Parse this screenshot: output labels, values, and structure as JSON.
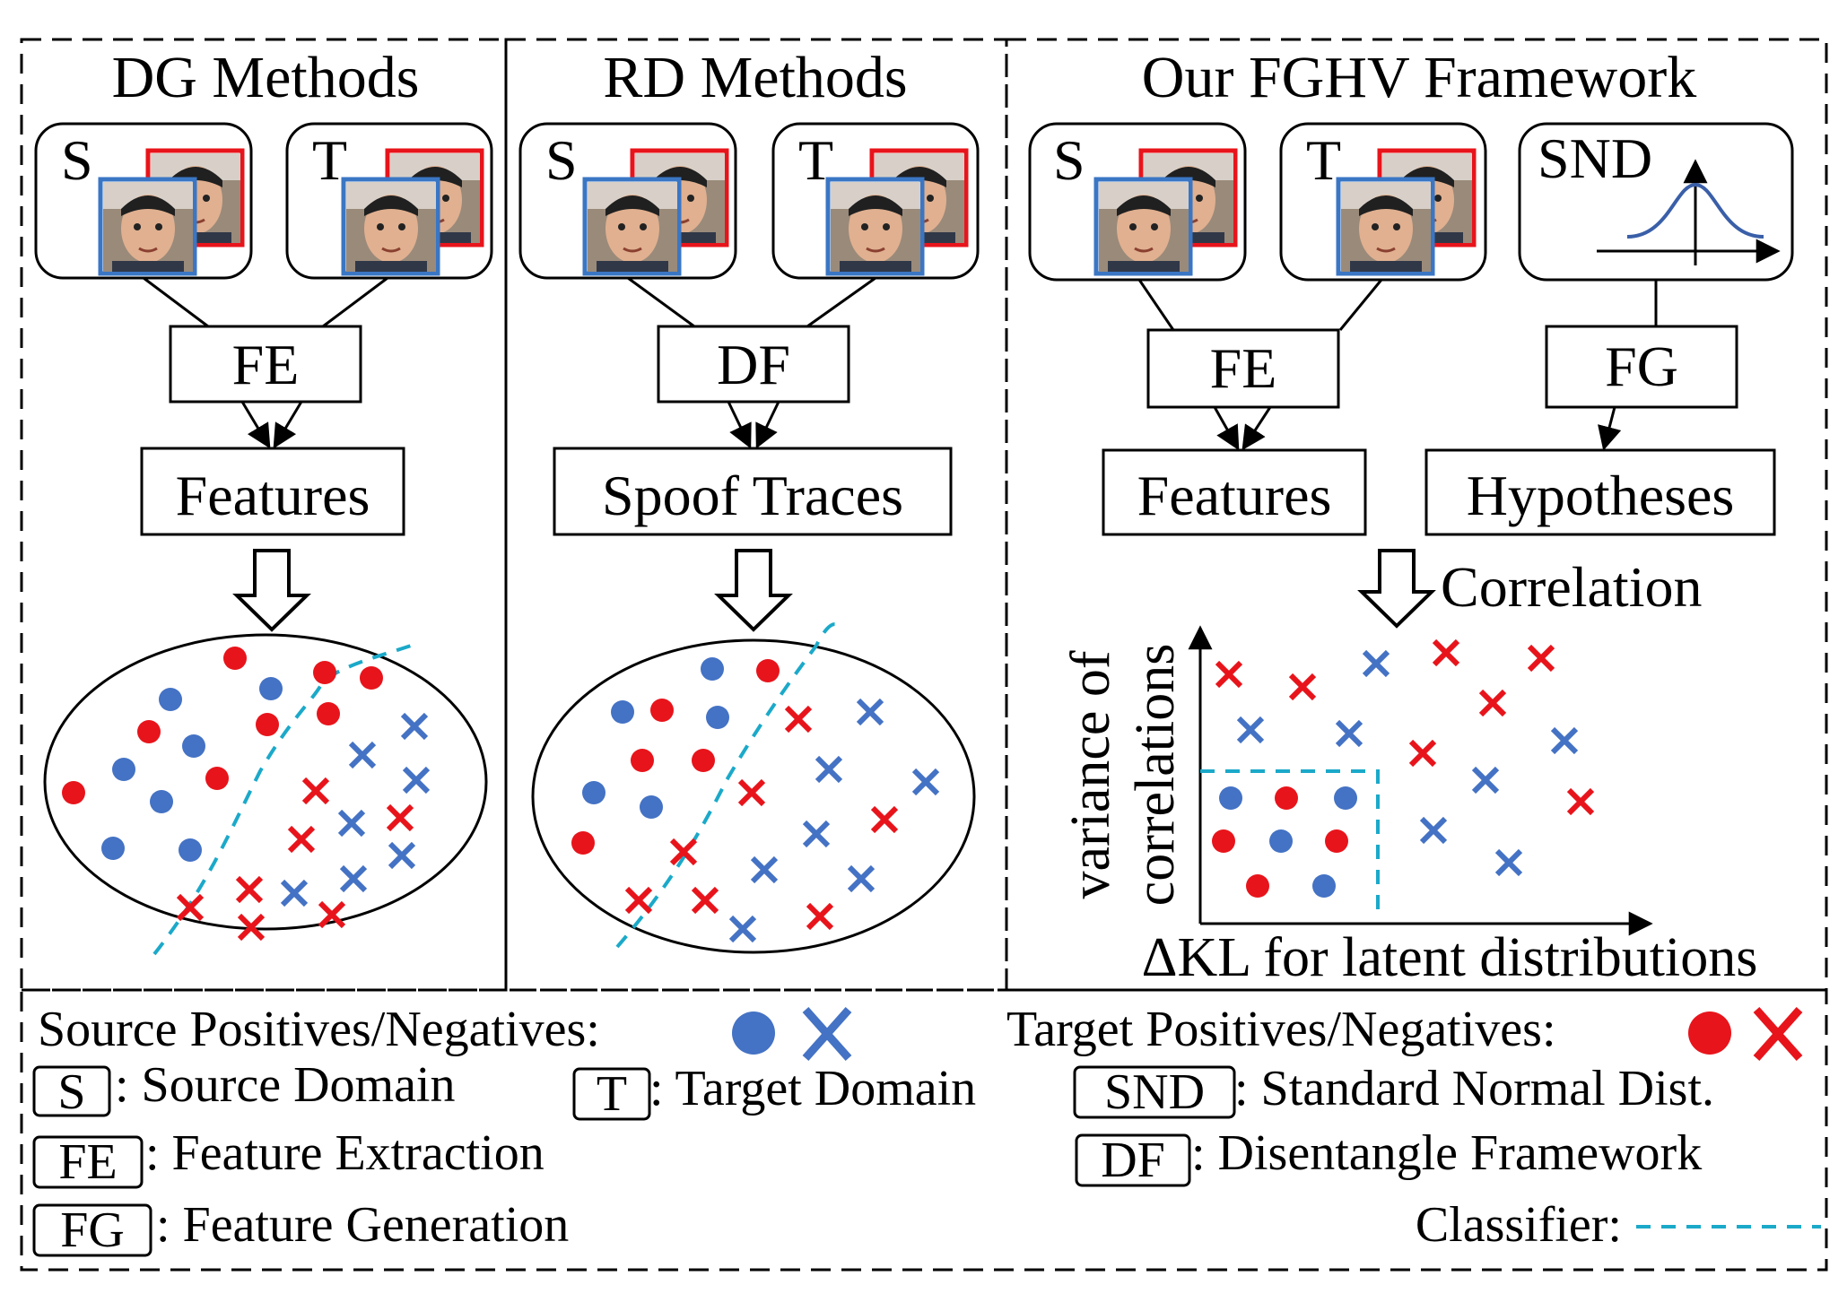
{
  "panels": {
    "dg": {
      "title": "DG Methods",
      "src": "S",
      "tgt": "T",
      "module": "FE",
      "output": "Features"
    },
    "rd": {
      "title": "RD Methods",
      "src": "S",
      "tgt": "T",
      "module": "DF",
      "output": "Spoof Traces"
    },
    "fghv": {
      "title": "Our FGHV Framework",
      "src": "S",
      "tgt": "T",
      "snd": "SND",
      "module1": "FE",
      "module2": "FG",
      "output1": "Features",
      "output2": "Hypotheses",
      "correlation": "Correlation",
      "yaxis_line1": "variance of",
      "yaxis_line2": "correlations",
      "xaxis": "ΔKL for latent distributions"
    }
  },
  "legend": {
    "source_pn": "Source Positives/Negatives:",
    "target_pn": "Target Positives/Negatives:",
    "S": {
      "key": "S",
      "desc": ": Source Domain"
    },
    "T": {
      "key": "T",
      "desc": ": Target Domain"
    },
    "SND": {
      "key": "SND",
      "desc": ": Standard Normal Dist."
    },
    "FE": {
      "key": "FE",
      "desc": ": Feature Extraction"
    },
    "DF": {
      "key": "DF",
      "desc": ": Disentangle Framework"
    },
    "FG": {
      "key": "FG",
      "desc": ": Feature Generation"
    },
    "classifier": "Classifier:"
  },
  "colors": {
    "source": "#4472c4",
    "target": "#e8141b",
    "classifier": "#1ba9c9"
  },
  "icons": [
    "face-photo-icon",
    "normal-distribution-icon",
    "hollow-down-arrow-icon"
  ]
}
